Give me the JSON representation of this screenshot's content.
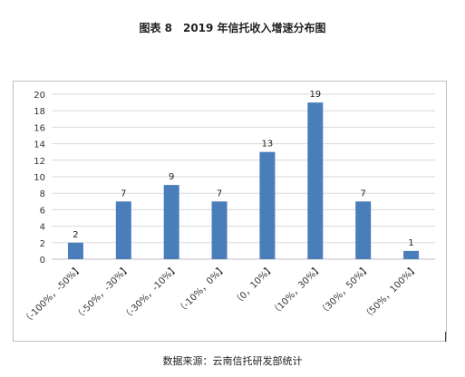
{
  "figure": {
    "title": "图表 8　2019 年信托收入增速分布图",
    "source": "数据来源：云南信托研发部统计"
  },
  "chart_data": {
    "type": "bar",
    "title": "图表 8　2019 年信托收入增速分布图",
    "xlabel": "",
    "ylabel": "",
    "ylim": [
      0,
      20
    ],
    "yticks": [
      0,
      2,
      4,
      6,
      8,
      10,
      12,
      14,
      16,
      18,
      20
    ],
    "grid": true,
    "legend": "none",
    "bar_color": "#4a7ebb",
    "categories": [
      "（-100%，-50%】",
      "（-50%，-30%】",
      "（-30%，-10%】",
      "（-10%，0%】",
      "（0，10%】",
      "（10%，30%】",
      "（30%，50%】",
      "（50%，100%】"
    ],
    "values": [
      2,
      7,
      9,
      7,
      13,
      19,
      7,
      1
    ]
  }
}
